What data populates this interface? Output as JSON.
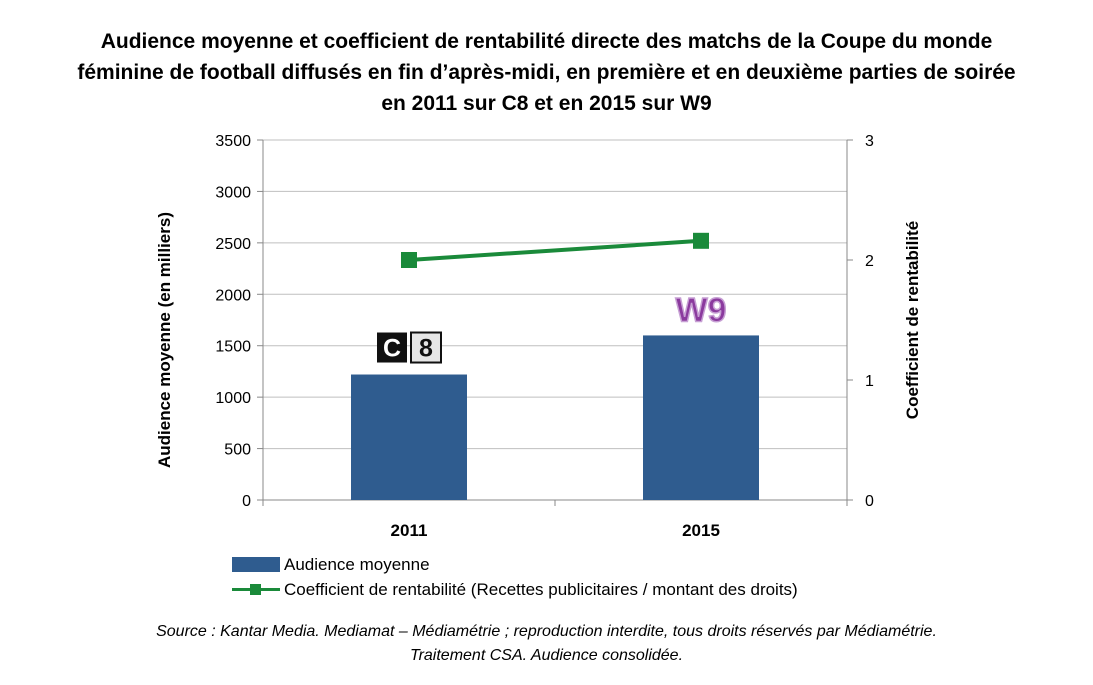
{
  "title_lines": [
    "Audience moyenne et coefficient de rentabilité directe des matchs de la Coupe du monde",
    "féminine de football diffusés en fin d’après-midi, en première et en deuxième parties de soirée",
    "en 2011 sur C8 et en 2015 sur W9"
  ],
  "chart_data": {
    "type": "bar",
    "title": "Audience moyenne et coefficient de rentabilité directe des matchs de la Coupe du monde féminine de football diffusés en fin d’après-midi, en première et en deuxième parties de soirée en 2011 sur C8 et en 2015 sur W9",
    "categories": [
      "2011",
      "2015"
    ],
    "series": [
      {
        "name": "Audience moyenne",
        "type": "bar",
        "axis": "left",
        "color": "#2f5c8f",
        "values": [
          1220,
          1600
        ]
      },
      {
        "name": "Coefficient de rentabilité (Recettes publicitaires / montant des droits)",
        "type": "line",
        "axis": "right",
        "color": "#1a8a3a",
        "marker": "square",
        "values": [
          2.0,
          2.16
        ]
      }
    ],
    "ylabel": "Audience moyenne (en milliers)",
    "y2label": "Coefficient de rentabilité",
    "ylim": [
      0,
      3500
    ],
    "y2lim": [
      0,
      3
    ],
    "yticks": [
      0,
      500,
      1000,
      1500,
      2000,
      2500,
      3000,
      3500
    ],
    "y2ticks": [
      0,
      1,
      2,
      3
    ],
    "grid": true,
    "legend_position": "bottom",
    "bar_logos": [
      {
        "category": "2011",
        "text": "C8",
        "color": "#000000"
      },
      {
        "category": "2015",
        "text": "W9",
        "color": "#8b3a9e"
      }
    ]
  },
  "source_lines": [
    "Source : Kantar Media. Mediamat – Médiamétrie ; reproduction interdite, tous droits réservés par Médiamétrie.",
    "Traitement CSA. Audience consolidée."
  ]
}
